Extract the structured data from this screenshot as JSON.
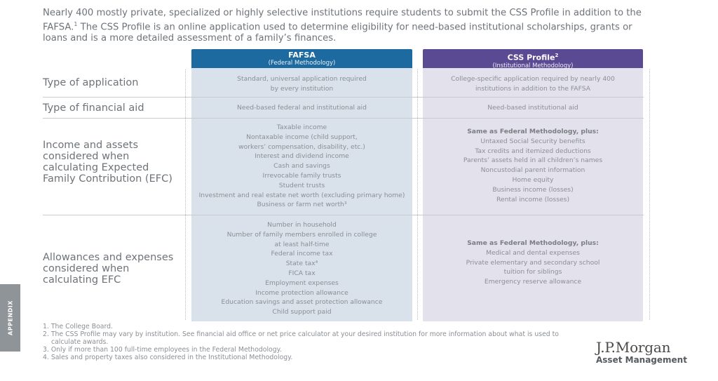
{
  "intro": {
    "part1": "Nearly 400 mostly private, specialized or highly selective institutions require students to submit the CSS Profile in addition to the FAFSA.",
    "sup": "1",
    "part2": " The CSS Profile is an online application used to determine eligibility for need-based institutional scholarships, grants or loans and is a more detailed assessment of a family’s finances."
  },
  "columns": {
    "fafsa": {
      "title": "FAFSA",
      "subtitle": "(Federal Methodology)",
      "color": "#1d6aa0"
    },
    "css": {
      "title": "CSS Profile",
      "title_sup": "2",
      "subtitle": "(Institutional Methodology)",
      "color": "#5a4a93"
    }
  },
  "rows": {
    "application": {
      "label": "Type of application",
      "fafsa": [
        "Standard, universal application required",
        "by every institution"
      ],
      "css": [
        "College-specific application required by nearly 400",
        "institutions in addition to the FAFSA"
      ]
    },
    "aid": {
      "label": "Type of financial aid",
      "fafsa": [
        "Need-based federal and institutional aid"
      ],
      "css": [
        "Need-based institutional aid"
      ]
    },
    "income": {
      "label": "Income and assets considered when calculating Expected Family Contribution (EFC)",
      "fafsa": [
        "Taxable income",
        "Nontaxable income (child support,",
        "workers’ compensation, disability, etc.)",
        "Interest and dividend income",
        "Cash and savings",
        "Irrevocable family trusts",
        "Student trusts",
        "Investment and real estate net worth (excluding primary home)",
        "Business or farm net worth³"
      ],
      "css_lead": "Same as Federal Methodology, plus:",
      "css": [
        "Untaxed Social Security benefits",
        "Tax credits and itemized deductions",
        "Parents’ assets held in all children’s names",
        "Noncustodial parent information",
        "Home equity",
        "Business income (losses)",
        "Rental income (losses)"
      ]
    },
    "allowances": {
      "label": "Allowances and expenses considered when calculating EFC",
      "fafsa": [
        "Number in household",
        "Number of family members enrolled in college",
        "at least half-time",
        "Federal income tax",
        "State tax⁴",
        "FICA tax",
        "Employment expenses",
        "Income protection allowance",
        "Education savings and asset protection allowance",
        "Child support paid"
      ],
      "css_lead": "Same as Federal Methodology, plus:",
      "css": [
        "Medical and dental expenses",
        "Private elementary and secondary school",
        "tuition for siblings",
        "Emergency reserve allowance"
      ]
    }
  },
  "footnotes": [
    "1. The College Board.",
    "2. The CSS Profile may vary by institution. See financial aid office or net price calculator at your desired institution for more information about what is used to calculate awards.",
    "3. Only if more than 100 full-time employees in the Federal Methodology.",
    "4. Sales and property taxes also considered in the Institutional Methodology."
  ],
  "side_tab": "APPENDIX",
  "logo": {
    "line1": "J.P.Morgan",
    "line2": "Asset Management"
  }
}
